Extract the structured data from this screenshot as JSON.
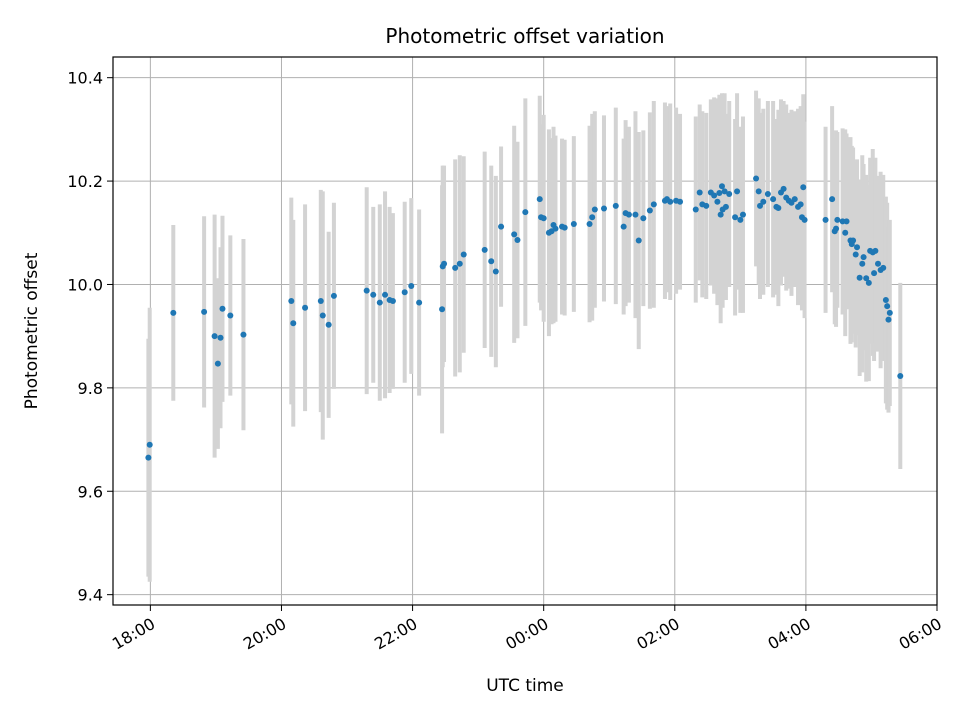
{
  "chart_data": {
    "type": "scatter",
    "title": "Photometric offset variation",
    "xlabel": "UTC time",
    "ylabel": "Photometric offset",
    "x_unit": "hours",
    "xlim": [
      17.43,
      30.0
    ],
    "ylim": [
      9.38,
      10.44
    ],
    "x_ticks": [
      {
        "value": 18,
        "label": "18:00"
      },
      {
        "value": 20,
        "label": "20:00"
      },
      {
        "value": 22,
        "label": "22:00"
      },
      {
        "value": 24,
        "label": "00:00"
      },
      {
        "value": 26,
        "label": "02:00"
      },
      {
        "value": 28,
        "label": "04:00"
      },
      {
        "value": 30,
        "label": "06:00"
      }
    ],
    "y_ticks": [
      {
        "value": 9.4,
        "label": "9.4"
      },
      {
        "value": 9.6,
        "label": "9.6"
      },
      {
        "value": 9.8,
        "label": "9.8"
      },
      {
        "value": 10.0,
        "label": "10.0"
      },
      {
        "value": 10.2,
        "label": "10.2"
      },
      {
        "value": 10.4,
        "label": "10.4"
      }
    ],
    "grid": true,
    "marker_color": "#1f77b4",
    "errorbar_color": "#d3d3d3",
    "points": [
      [
        17.97,
        9.665,
        0.23
      ],
      [
        17.99,
        9.69,
        0.265
      ],
      [
        18.35,
        9.945,
        0.17
      ],
      [
        18.82,
        9.947,
        0.185
      ],
      [
        18.98,
        9.9,
        0.235
      ],
      [
        19.03,
        9.847,
        0.165
      ],
      [
        19.07,
        9.897,
        0.175
      ],
      [
        19.1,
        9.953,
        0.18
      ],
      [
        19.22,
        9.94,
        0.155
      ],
      [
        19.42,
        9.903,
        0.185
      ],
      [
        20.15,
        9.968,
        0.2
      ],
      [
        20.18,
        9.925,
        0.2
      ],
      [
        20.36,
        9.955,
        0.2
      ],
      [
        20.6,
        9.968,
        0.215
      ],
      [
        20.63,
        9.94,
        0.24
      ],
      [
        20.72,
        9.922,
        0.18
      ],
      [
        20.8,
        9.978,
        0.18
      ],
      [
        21.3,
        9.988,
        0.2
      ],
      [
        21.4,
        9.98,
        0.17
      ],
      [
        21.5,
        9.965,
        0.19
      ],
      [
        21.58,
        9.98,
        0.2
      ],
      [
        21.65,
        9.97,
        0.18
      ],
      [
        21.7,
        9.968,
        0.17
      ],
      [
        21.88,
        9.985,
        0.175
      ],
      [
        21.98,
        9.997,
        0.17
      ],
      [
        22.1,
        9.965,
        0.18
      ],
      [
        22.46,
        10.035,
        0.195
      ],
      [
        22.48,
        10.04,
        0.19
      ],
      [
        22.45,
        9.952,
        0.24
      ],
      [
        22.65,
        10.032,
        0.21
      ],
      [
        22.72,
        10.04,
        0.21
      ],
      [
        22.78,
        10.058,
        0.19
      ],
      [
        23.1,
        10.067,
        0.19
      ],
      [
        23.2,
        10.045,
        0.185
      ],
      [
        23.27,
        10.025,
        0.185
      ],
      [
        23.35,
        10.112,
        0.155
      ],
      [
        23.55,
        10.097,
        0.21
      ],
      [
        23.6,
        10.086,
        0.19
      ],
      [
        23.72,
        10.14,
        0.22
      ],
      [
        23.94,
        10.165,
        0.2
      ],
      [
        23.96,
        10.13,
        0.18
      ],
      [
        24.0,
        10.128,
        0.2
      ],
      [
        24.08,
        10.1,
        0.2
      ],
      [
        24.12,
        10.103,
        0.18
      ],
      [
        24.15,
        10.115,
        0.19
      ],
      [
        24.18,
        10.108,
        0.18
      ],
      [
        24.28,
        10.112,
        0.17
      ],
      [
        24.32,
        10.11,
        0.17
      ],
      [
        24.46,
        10.117,
        0.17
      ],
      [
        24.7,
        10.117,
        0.19
      ],
      [
        24.74,
        10.13,
        0.2
      ],
      [
        24.78,
        10.145,
        0.19
      ],
      [
        24.92,
        10.147,
        0.18
      ],
      [
        25.1,
        10.152,
        0.19
      ],
      [
        25.22,
        10.112,
        0.17
      ],
      [
        25.25,
        10.138,
        0.18
      ],
      [
        25.3,
        10.135,
        0.17
      ],
      [
        25.4,
        10.135,
        0.2
      ],
      [
        25.45,
        10.085,
        0.21
      ],
      [
        25.52,
        10.128,
        0.17
      ],
      [
        25.62,
        10.143,
        0.19
      ],
      [
        25.68,
        10.155,
        0.2
      ],
      [
        25.85,
        10.162,
        0.19
      ],
      [
        25.88,
        10.165,
        0.18
      ],
      [
        25.93,
        10.16,
        0.19
      ],
      [
        26.02,
        10.162,
        0.18
      ],
      [
        26.08,
        10.16,
        0.17
      ],
      [
        26.32,
        10.145,
        0.18
      ],
      [
        26.38,
        10.178,
        0.17
      ],
      [
        26.42,
        10.155,
        0.18
      ],
      [
        26.48,
        10.152,
        0.18
      ],
      [
        26.55,
        10.178,
        0.18
      ],
      [
        26.6,
        10.172,
        0.19
      ],
      [
        26.65,
        10.16,
        0.2
      ],
      [
        26.68,
        10.177,
        0.19
      ],
      [
        26.7,
        10.135,
        0.21
      ],
      [
        26.72,
        10.19,
        0.18
      ],
      [
        26.73,
        10.145,
        0.19
      ],
      [
        26.76,
        10.18,
        0.19
      ],
      [
        26.78,
        10.15,
        0.18
      ],
      [
        26.83,
        10.175,
        0.18
      ],
      [
        26.92,
        10.13,
        0.19
      ],
      [
        26.95,
        10.18,
        0.19
      ],
      [
        27.0,
        10.125,
        0.18
      ],
      [
        27.04,
        10.135,
        0.19
      ],
      [
        27.24,
        10.205,
        0.17
      ],
      [
        27.28,
        10.18,
        0.18
      ],
      [
        27.3,
        10.152,
        0.18
      ],
      [
        27.35,
        10.16,
        0.18
      ],
      [
        27.42,
        10.175,
        0.18
      ],
      [
        27.5,
        10.165,
        0.19
      ],
      [
        27.55,
        10.15,
        0.17
      ],
      [
        27.58,
        10.148,
        0.19
      ],
      [
        27.62,
        10.178,
        0.18
      ],
      [
        27.66,
        10.185,
        0.17
      ],
      [
        27.7,
        10.168,
        0.18
      ],
      [
        27.74,
        10.162,
        0.17
      ],
      [
        27.78,
        10.158,
        0.18
      ],
      [
        27.83,
        10.165,
        0.17
      ],
      [
        27.88,
        10.15,
        0.19
      ],
      [
        27.92,
        10.155,
        0.19
      ],
      [
        27.94,
        10.13,
        0.18
      ],
      [
        27.96,
        10.188,
        0.18
      ],
      [
        27.98,
        10.125,
        0.19
      ],
      [
        28.3,
        10.125,
        0.18
      ],
      [
        28.4,
        10.165,
        0.18
      ],
      [
        28.44,
        10.103,
        0.18
      ],
      [
        28.46,
        10.108,
        0.19
      ],
      [
        28.48,
        10.125,
        0.17
      ],
      [
        28.56,
        10.122,
        0.18
      ],
      [
        28.6,
        10.1,
        0.2
      ],
      [
        28.62,
        10.122,
        0.17
      ],
      [
        28.68,
        10.085,
        0.2
      ],
      [
        28.7,
        10.078,
        0.19
      ],
      [
        28.72,
        10.085,
        0.18
      ],
      [
        28.76,
        10.058,
        0.18
      ],
      [
        28.78,
        10.072,
        0.17
      ],
      [
        28.82,
        10.013,
        0.19
      ],
      [
        28.86,
        10.04,
        0.21
      ],
      [
        28.88,
        10.053,
        0.18
      ],
      [
        28.92,
        10.012,
        0.2
      ],
      [
        28.96,
        10.003,
        0.19
      ],
      [
        28.98,
        10.065,
        0.18
      ],
      [
        29.02,
        10.062,
        0.2
      ],
      [
        29.04,
        10.022,
        0.17
      ],
      [
        29.06,
        10.065,
        0.18
      ],
      [
        29.1,
        10.04,
        0.17
      ],
      [
        29.14,
        10.028,
        0.19
      ],
      [
        29.18,
        10.032,
        0.18
      ],
      [
        29.22,
        9.97,
        0.2
      ],
      [
        29.24,
        9.958,
        0.2
      ],
      [
        29.26,
        9.932,
        0.18
      ],
      [
        29.28,
        9.945,
        0.18
      ],
      [
        29.44,
        9.823,
        0.18
      ]
    ]
  }
}
